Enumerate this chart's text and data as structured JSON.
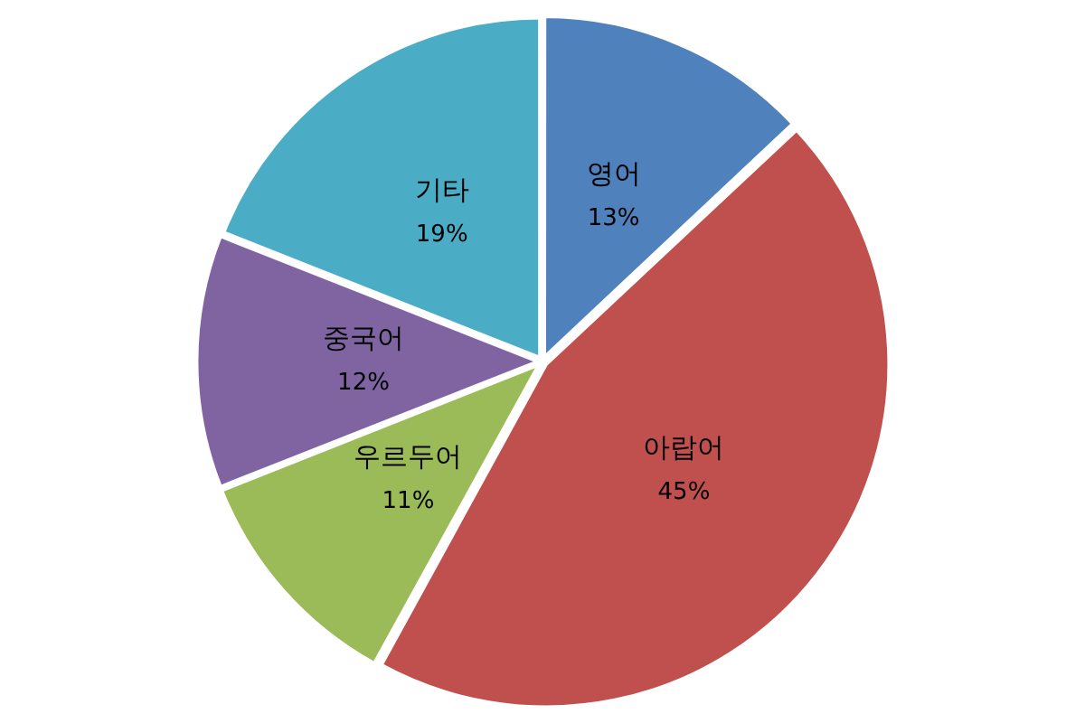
{
  "chart_data": {
    "type": "pie",
    "categories": [
      "영어",
      "아랍어",
      "우르두어",
      "중국어",
      "기타"
    ],
    "values": [
      13,
      45,
      11,
      12,
      19
    ],
    "value_labels": [
      "13%",
      "45%",
      "11%",
      "12%",
      "19%"
    ],
    "colors": [
      "#4f81bd",
      "#c0504d",
      "#9bbb59",
      "#8064a2",
      "#4bacc6"
    ],
    "legend": false
  }
}
